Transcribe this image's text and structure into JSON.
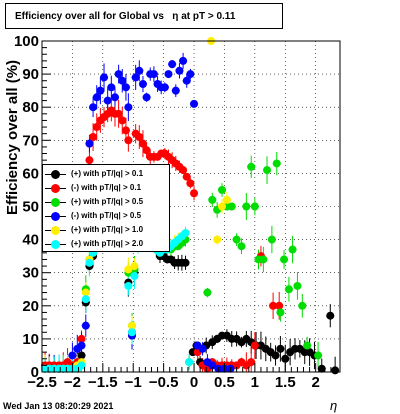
{
  "chart_data": {
    "type": "scatter",
    "title": "Efficiency over all for Global vs",
    "title_eta": "η",
    "title_tail": "at pT > 0.11",
    "xlabel": "η",
    "ylabel": "Efficiency over all (%)",
    "xlim": [
      -2.5,
      2.4
    ],
    "ylim": [
      0,
      100
    ],
    "x_ticks": [
      -2.5,
      -2,
      -1.5,
      -1,
      -0.5,
      0,
      0.5,
      1,
      1.5,
      2
    ],
    "x_tick_labels": [
      "−2.5",
      "−2",
      "−1.5",
      "−1",
      "−0.5",
      "0",
      "0.5",
      "1",
      "1.5",
      "2"
    ],
    "y_ticks": [
      0,
      10,
      20,
      30,
      40,
      50,
      60,
      70,
      80,
      90,
      100
    ],
    "grid": true,
    "legend_position": "middle-left",
    "series": [
      {
        "name": "(+) with pT/|q| > 0.1",
        "color": "#000000",
        "points": [
          [
            -2.45,
            1
          ],
          [
            -2.38,
            1
          ],
          [
            -2.3,
            1
          ],
          [
            -2.22,
            1
          ],
          [
            -2.15,
            1
          ],
          [
            -2.08,
            2
          ],
          [
            -2.0,
            1
          ],
          [
            -1.92,
            2
          ],
          [
            -1.85,
            5
          ],
          [
            -1.78,
            21
          ],
          [
            -1.72,
            32
          ],
          [
            -1.66,
            35
          ],
          [
            -1.08,
            27
          ],
          [
            -1.02,
            12
          ],
          [
            -0.98,
            30
          ],
          [
            -0.92,
            40
          ],
          [
            -0.86,
            43
          ],
          [
            -0.8,
            45
          ],
          [
            -0.74,
            42
          ],
          [
            -0.68,
            40
          ],
          [
            -0.62,
            37
          ],
          [
            -0.56,
            35
          ],
          [
            -0.5,
            35
          ],
          [
            -0.44,
            34
          ],
          [
            -0.38,
            34
          ],
          [
            -0.32,
            33
          ],
          [
            -0.26,
            33
          ],
          [
            -0.2,
            33
          ],
          [
            -0.14,
            33
          ],
          [
            -0.08,
            3
          ],
          [
            -0.02,
            6
          ],
          [
            0.04,
            8
          ],
          [
            0.1,
            3
          ],
          [
            0.2,
            8
          ],
          [
            0.3,
            9
          ],
          [
            0.38,
            10
          ],
          [
            0.46,
            11
          ],
          [
            0.54,
            11
          ],
          [
            0.62,
            10
          ],
          [
            0.7,
            10
          ],
          [
            0.78,
            9
          ],
          [
            0.86,
            10
          ],
          [
            0.94,
            9
          ],
          [
            1.02,
            8
          ],
          [
            1.1,
            8
          ],
          [
            1.18,
            7
          ],
          [
            1.26,
            6
          ],
          [
            1.34,
            5
          ],
          [
            1.42,
            7
          ],
          [
            1.5,
            4
          ],
          [
            1.58,
            6
          ],
          [
            1.66,
            7
          ],
          [
            1.74,
            7
          ],
          [
            1.82,
            6
          ],
          [
            1.9,
            6
          ],
          [
            1.98,
            5
          ],
          [
            2.1,
            1
          ],
          [
            2.24,
            17
          ],
          [
            2.32,
            0.5
          ]
        ]
      },
      {
        "name": "(-) with pT/|q| > 0.1",
        "color": "#ff0000",
        "points": [
          [
            -2.45,
            2
          ],
          [
            -2.38,
            2
          ],
          [
            -2.3,
            2
          ],
          [
            -2.22,
            2
          ],
          [
            -2.15,
            2
          ],
          [
            -2.08,
            3
          ],
          [
            -2.0,
            2
          ],
          [
            -1.92,
            3
          ],
          [
            -1.85,
            10
          ],
          [
            -1.78,
            54
          ],
          [
            -1.72,
            64
          ],
          [
            -1.66,
            71
          ],
          [
            -1.6,
            74
          ],
          [
            -1.54,
            76
          ],
          [
            -1.48,
            77
          ],
          [
            -1.42,
            78
          ],
          [
            -1.36,
            79
          ],
          [
            -1.3,
            78
          ],
          [
            -1.24,
            78
          ],
          [
            -1.18,
            76
          ],
          [
            -1.12,
            73
          ],
          [
            -1.08,
            70
          ],
          [
            -1.02,
            11
          ],
          [
            -0.96,
            72
          ],
          [
            -0.9,
            71
          ],
          [
            -0.84,
            69
          ],
          [
            -0.78,
            67
          ],
          [
            -0.72,
            65
          ],
          [
            -0.66,
            65
          ],
          [
            -0.6,
            65
          ],
          [
            -0.54,
            66
          ],
          [
            -0.48,
            66
          ],
          [
            -0.42,
            65
          ],
          [
            -0.36,
            64
          ],
          [
            -0.3,
            63
          ],
          [
            -0.24,
            62
          ],
          [
            -0.18,
            61
          ],
          [
            -0.12,
            59
          ],
          [
            -0.06,
            57
          ],
          [
            0.0,
            54
          ],
          [
            0.06,
            6
          ],
          [
            0.14,
            2
          ],
          [
            0.22,
            1
          ],
          [
            0.3,
            3
          ],
          [
            0.38,
            2
          ],
          [
            0.46,
            2
          ],
          [
            0.54,
            2
          ],
          [
            0.62,
            2
          ],
          [
            0.7,
            2
          ],
          [
            0.78,
            3
          ],
          [
            0.86,
            2
          ],
          [
            0.94,
            3
          ],
          [
            1.0,
            8
          ],
          [
            1.1,
            35
          ],
          [
            1.3,
            20
          ],
          [
            1.4,
            20
          ]
        ]
      },
      {
        "name": "(+) with pT/|q| > 0.5",
        "color": "#00dd00",
        "points": [
          [
            -2.45,
            1
          ],
          [
            -2.38,
            1
          ],
          [
            -2.3,
            1
          ],
          [
            -2.22,
            1
          ],
          [
            -2.15,
            1
          ],
          [
            -2.08,
            1
          ],
          [
            -2.0,
            1
          ],
          [
            -1.92,
            1
          ],
          [
            -1.85,
            2
          ],
          [
            -1.78,
            25
          ],
          [
            -1.72,
            34
          ],
          [
            -1.66,
            36
          ],
          [
            -1.08,
            30
          ],
          [
            -1.02,
            14
          ],
          [
            -0.98,
            31
          ],
          [
            -0.92,
            41
          ],
          [
            -0.86,
            44
          ],
          [
            -0.8,
            45
          ],
          [
            -0.74,
            42
          ],
          [
            -0.68,
            40
          ],
          [
            -0.62,
            38
          ],
          [
            -0.56,
            37
          ],
          [
            -0.5,
            38
          ],
          [
            -0.44,
            37
          ],
          [
            -0.38,
            37
          ],
          [
            -0.32,
            38
          ],
          [
            -0.26,
            38
          ],
          [
            -0.2,
            39
          ],
          [
            -0.14,
            40
          ],
          [
            -0.08,
            3
          ],
          [
            0.22,
            24
          ],
          [
            0.3,
            52
          ],
          [
            0.38,
            49
          ],
          [
            0.46,
            55
          ],
          [
            0.54,
            50
          ],
          [
            0.62,
            50
          ],
          [
            0.7,
            40
          ],
          [
            0.78,
            38
          ],
          [
            0.86,
            50
          ],
          [
            0.94,
            62
          ],
          [
            1.0,
            50
          ],
          [
            1.06,
            34
          ],
          [
            1.14,
            34
          ],
          [
            1.2,
            61
          ],
          [
            1.28,
            40
          ],
          [
            1.36,
            63
          ],
          [
            1.42,
            18
          ],
          [
            1.48,
            34
          ],
          [
            1.56,
            25
          ],
          [
            1.62,
            37
          ],
          [
            1.7,
            26
          ],
          [
            1.78,
            20
          ],
          [
            1.86,
            8
          ],
          [
            2.04,
            5
          ]
        ]
      },
      {
        "name": "(-) with pT/|q| > 0.5",
        "color": "#0000ff",
        "points": [
          [
            -2.45,
            1
          ],
          [
            -2.38,
            1
          ],
          [
            -2.3,
            1
          ],
          [
            -2.22,
            1
          ],
          [
            -2.15,
            1
          ],
          [
            -2.08,
            1
          ],
          [
            -2.0,
            5
          ],
          [
            -1.92,
            7
          ],
          [
            -1.85,
            8
          ],
          [
            -1.78,
            14
          ],
          [
            -1.72,
            69
          ],
          [
            -1.66,
            80
          ],
          [
            -1.6,
            83
          ],
          [
            -1.54,
            85
          ],
          [
            -1.48,
            89
          ],
          [
            -1.42,
            82
          ],
          [
            -1.36,
            86
          ],
          [
            -1.3,
            83
          ],
          [
            -1.24,
            90
          ],
          [
            -1.18,
            88
          ],
          [
            -1.12,
            86
          ],
          [
            -1.08,
            80
          ],
          [
            -1.02,
            11
          ],
          [
            -0.96,
            89
          ],
          [
            -0.9,
            91
          ],
          [
            -0.84,
            87
          ],
          [
            -0.78,
            83
          ],
          [
            -0.72,
            90
          ],
          [
            -0.66,
            90
          ],
          [
            -0.6,
            87
          ],
          [
            -0.54,
            86
          ],
          [
            -0.48,
            86
          ],
          [
            -0.42,
            90
          ],
          [
            -0.36,
            93
          ],
          [
            -0.3,
            85
          ],
          [
            -0.24,
            91
          ],
          [
            -0.18,
            94
          ],
          [
            -0.12,
            88
          ],
          [
            -0.06,
            90
          ],
          [
            0.0,
            81
          ],
          [
            0.06,
            8
          ],
          [
            0.14,
            7
          ],
          [
            0.22,
            3
          ],
          [
            0.3,
            2
          ],
          [
            0.4,
            1
          ],
          [
            0.5,
            1
          ],
          [
            0.6,
            1
          ]
        ]
      },
      {
        "name": "(+) with pT/|q| > 1.0",
        "color": "#ffee00",
        "points": [
          [
            -2.45,
            1
          ],
          [
            -2.38,
            1
          ],
          [
            -2.3,
            1
          ],
          [
            -2.22,
            1
          ],
          [
            -2.15,
            1
          ],
          [
            -2.08,
            1
          ],
          [
            -2.0,
            1
          ],
          [
            -1.92,
            2
          ],
          [
            -1.85,
            3
          ],
          [
            -1.78,
            24
          ],
          [
            -1.72,
            34
          ],
          [
            -1.66,
            37
          ],
          [
            -1.08,
            31
          ],
          [
            -1.02,
            14
          ],
          [
            -0.98,
            32
          ],
          [
            -0.92,
            41
          ],
          [
            -0.86,
            44
          ],
          [
            -0.8,
            45
          ],
          [
            -0.74,
            42
          ],
          [
            -0.68,
            40
          ],
          [
            -0.62,
            38
          ],
          [
            -0.56,
            37
          ],
          [
            -0.5,
            38
          ],
          [
            -0.44,
            38
          ],
          [
            -0.38,
            38
          ],
          [
            -0.32,
            39
          ],
          [
            -0.26,
            40
          ],
          [
            -0.2,
            41
          ],
          [
            -0.14,
            42
          ],
          [
            -0.08,
            3
          ],
          [
            0.28,
            100
          ],
          [
            0.38,
            40
          ],
          [
            0.46,
            50
          ],
          [
            0.54,
            52
          ]
        ]
      },
      {
        "name": "(+) with pT/|q| > 2.0",
        "color": "#00ffff",
        "points": [
          [
            -2.45,
            1
          ],
          [
            -2.38,
            1
          ],
          [
            -2.3,
            1
          ],
          [
            -2.22,
            1
          ],
          [
            -2.15,
            1
          ],
          [
            -2.08,
            1
          ],
          [
            -2.0,
            1
          ],
          [
            -1.92,
            1
          ],
          [
            -1.85,
            2
          ],
          [
            -1.78,
            22
          ],
          [
            -1.72,
            33
          ],
          [
            -1.66,
            36
          ],
          [
            -1.08,
            26
          ],
          [
            -1.02,
            12
          ],
          [
            -0.98,
            29
          ],
          [
            -0.92,
            40
          ],
          [
            -0.86,
            43
          ],
          [
            -0.8,
            44
          ],
          [
            -0.74,
            41
          ],
          [
            -0.68,
            39
          ],
          [
            -0.62,
            37
          ],
          [
            -0.56,
            36
          ],
          [
            -0.5,
            37
          ],
          [
            -0.44,
            37
          ],
          [
            -0.38,
            38
          ],
          [
            -0.32,
            39
          ],
          [
            -0.26,
            40
          ],
          [
            -0.2,
            41
          ],
          [
            -0.14,
            42
          ],
          [
            -0.08,
            3
          ]
        ]
      }
    ]
  },
  "footer": {
    "timestamp": "Wed Jan 13 08:20:29 2021"
  }
}
